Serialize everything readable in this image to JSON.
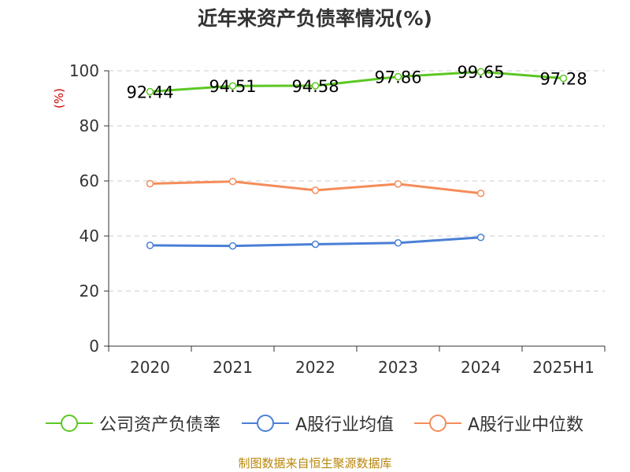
{
  "title": "近年来资产负债率情况(%)",
  "source": "制图数据来自恒生聚源数据库",
  "colors": {
    "company": "#5cc723",
    "industry_avg": "#4a7fd6",
    "industry_median": "#f58c5a",
    "title": "#333333",
    "axis": "#333333",
    "grid": "#cccccc",
    "unit": "#cc0000",
    "source": "#b8860b"
  },
  "chart_data": {
    "type": "line",
    "title": "近年来资产负债率情况(%)",
    "xlabel": "",
    "ylabel": "(%)",
    "ylim": [
      0,
      100
    ],
    "yticks": [
      0,
      20,
      40,
      60,
      80,
      100
    ],
    "grid": true,
    "legend_position": "bottom",
    "categories": [
      "2020",
      "2021",
      "2022",
      "2023",
      "2024",
      "2025H1"
    ],
    "series": [
      {
        "name": "公司资产负债率",
        "key": "company",
        "values": [
          92.44,
          94.51,
          94.58,
          97.86,
          99.65,
          97.28
        ],
        "labels": [
          "92.44",
          "94.51",
          "94.58",
          "97.86",
          "99.65",
          "97.28"
        ]
      },
      {
        "name": "A股行业均值",
        "key": "industry_avg",
        "values": [
          36.6,
          36.4,
          37.0,
          37.5,
          39.5,
          null
        ]
      },
      {
        "name": "A股行业中位数",
        "key": "industry_median",
        "values": [
          59.0,
          59.8,
          56.6,
          58.9,
          55.5,
          null
        ]
      }
    ]
  }
}
